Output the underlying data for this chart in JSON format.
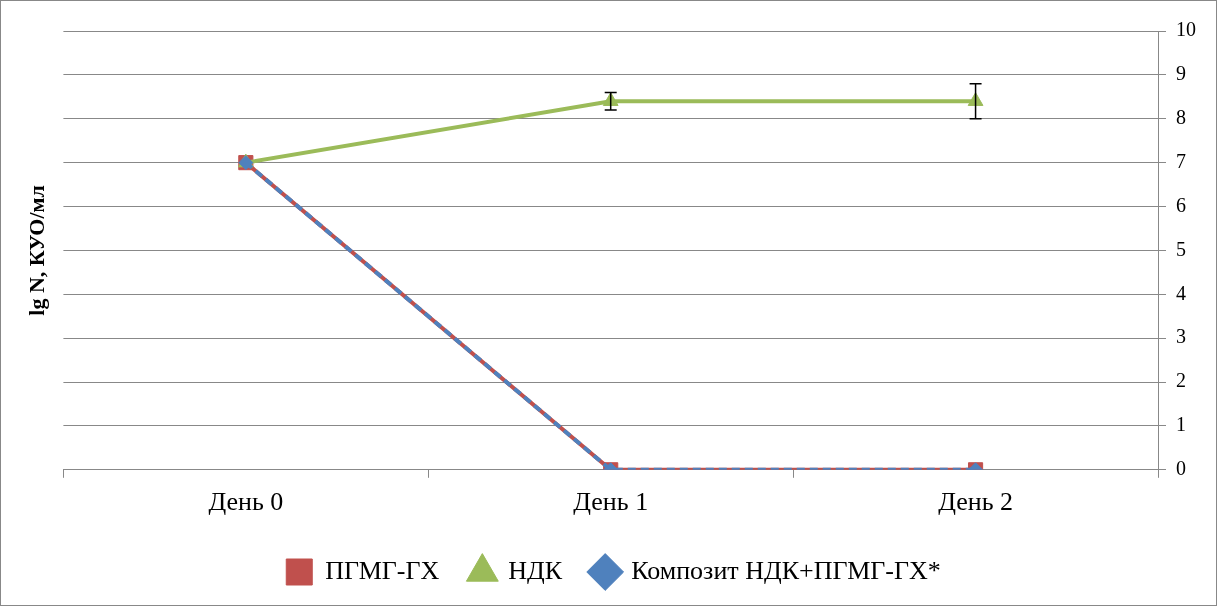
{
  "chart_data": {
    "type": "line",
    "ylabel": "lg N, КУО/мл",
    "categories": [
      "День 0",
      "День 1",
      "День 2"
    ],
    "series": [
      {
        "name": "ПГМГ-ГХ",
        "color": "#c0504d",
        "values": [
          7,
          0,
          0
        ],
        "marker": "square",
        "line_style": "solid"
      },
      {
        "name": "НДК",
        "color": "#9bbb59",
        "values": [
          7,
          8.4,
          8.4
        ],
        "errors": [
          null,
          0.2,
          0.4
        ],
        "marker": "triangle",
        "line_style": "solid"
      },
      {
        "name": "Композит НДК+ПГМГ-ГХ*",
        "color": "#4f81bd",
        "values": [
          7,
          0,
          0
        ],
        "marker": "diamond",
        "line_style": "dashed"
      }
    ],
    "ylim": [
      0,
      10
    ],
    "yticks": [
      0,
      1,
      2,
      3,
      4,
      5,
      6,
      7,
      8,
      9,
      10
    ],
    "grid": "y",
    "legend": "bottom"
  }
}
